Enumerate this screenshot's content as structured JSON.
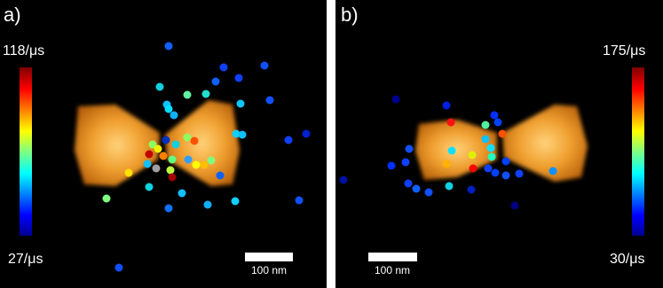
{
  "panels": [
    {
      "label": "a)",
      "colorbar": {
        "max": "118/μs",
        "min": "27/μs"
      },
      "scale_bar": "100 nm"
    },
    {
      "label": "b)",
      "colorbar": {
        "max": "175/μs",
        "min": "30/μs"
      },
      "scale_bar": "100 nm"
    }
  ]
}
